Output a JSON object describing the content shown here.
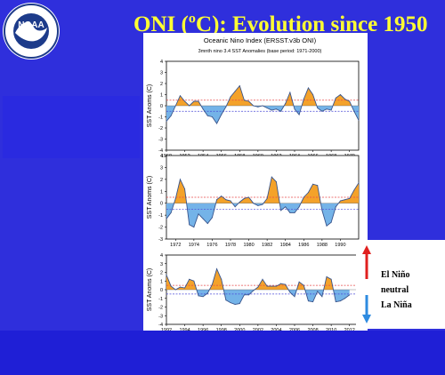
{
  "header": {
    "title": "ONI (ºC): Evolution since 1950"
  },
  "logo": {
    "text": "NOAA",
    "icon": "noaa-logo"
  },
  "chart": {
    "title": "Oceanic Nino Index (ERSST.v3b ONI)",
    "subtitle": "3mnth nino 3.4 SST Anomalies (base period: 1971-2000)"
  },
  "legend": {
    "el_nino": "El Niño",
    "neutral": "neutral",
    "la_nina": "La Niña",
    "up_arrow_icon": "arrow-up-icon",
    "down_arrow_icon": "arrow-down-icon"
  },
  "colors": {
    "background": "#2f2fdc",
    "title": "#ffff33",
    "warm_fill": "#f4a22a",
    "cold_fill": "#74b3e8",
    "line": "#38548c",
    "warm_threshold": "#e84a4a",
    "cold_threshold": "#4a4ad8"
  },
  "chart_data": [
    {
      "type": "area",
      "xlabel": "",
      "ylabel": "SST Anoms (C)",
      "xlim": [
        1950,
        1971
      ],
      "ylim": [
        -4,
        4
      ],
      "xticks": [
        "1950",
        "1952",
        "1954",
        "1956",
        "1958",
        "1960",
        "1962",
        "1964",
        "1966",
        "1968",
        "1970"
      ],
      "yticks": [
        "4",
        "3",
        "2",
        "1",
        "0",
        "-1",
        "-2",
        "-3",
        "-4"
      ],
      "thresholds": [
        0.5,
        -0.5
      ],
      "x": [
        1950,
        1950.5,
        1951,
        1951.5,
        1952,
        1952.5,
        1953,
        1953.5,
        1954,
        1954.5,
        1955,
        1955.5,
        1956,
        1956.5,
        1957,
        1957.5,
        1958,
        1958.5,
        1959,
        1959.5,
        1960,
        1960.5,
        1961,
        1961.5,
        1962,
        1962.5,
        1963,
        1963.5,
        1964,
        1964.5,
        1965,
        1965.5,
        1966,
        1966.5,
        1967,
        1967.5,
        1968,
        1968.5,
        1969,
        1969.5,
        1970,
        1970.5,
        1971
      ],
      "values": [
        -1.4,
        -0.9,
        0.0,
        0.9,
        0.4,
        0.0,
        0.4,
        0.4,
        -0.3,
        -0.9,
        -1.0,
        -1.6,
        -0.8,
        -0.1,
        0.8,
        1.3,
        1.8,
        0.5,
        0.4,
        0.0,
        -0.1,
        0.0,
        -0.2,
        -0.4,
        -0.3,
        -0.5,
        0.2,
        1.2,
        -0.3,
        -0.8,
        0.6,
        1.6,
        1.0,
        -0.2,
        -0.5,
        -0.3,
        -0.4,
        0.7,
        1.0,
        0.6,
        0.4,
        -0.5,
        -1.3
      ]
    },
    {
      "type": "area",
      "xlabel": "",
      "ylabel": "SST Anoms (C)",
      "xlim": [
        1971,
        1992
      ],
      "ylim": [
        -3,
        4
      ],
      "xticks": [
        "1972",
        "1974",
        "1976",
        "1978",
        "1980",
        "1982",
        "1984",
        "1986",
        "1988",
        "1990"
      ],
      "yticks": [
        "4",
        "3",
        "2",
        "1",
        "0",
        "-1",
        "-2",
        "-3"
      ],
      "thresholds": [
        0.5,
        -0.5
      ],
      "x": [
        1971,
        1971.5,
        1972,
        1972.5,
        1973,
        1973.5,
        1974,
        1974.5,
        1975,
        1975.5,
        1976,
        1976.5,
        1977,
        1977.5,
        1978,
        1978.5,
        1979,
        1979.5,
        1980,
        1980.5,
        1981,
        1981.5,
        1982,
        1982.5,
        1983,
        1983.5,
        1984,
        1984.5,
        1985,
        1985.5,
        1986,
        1986.5,
        1987,
        1987.5,
        1988,
        1988.5,
        1989,
        1989.5,
        1990,
        1990.5,
        1991,
        1991.5,
        1992
      ],
      "values": [
        -1.3,
        -0.8,
        0.4,
        2.0,
        1.2,
        -1.8,
        -2.0,
        -0.9,
        -1.3,
        -1.7,
        -1.2,
        0.3,
        0.6,
        0.3,
        0.2,
        -0.3,
        0.1,
        0.4,
        0.5,
        0.0,
        -0.2,
        -0.1,
        0.4,
        2.2,
        1.8,
        -0.6,
        -0.3,
        -0.8,
        -0.8,
        -0.3,
        0.5,
        0.9,
        1.6,
        1.5,
        -0.6,
        -1.9,
        -1.6,
        -0.3,
        0.2,
        0.3,
        0.4,
        1.1,
        1.7
      ]
    },
    {
      "type": "area",
      "xlabel": "",
      "ylabel": "SST Anoms (C)",
      "xlim": [
        1992,
        2013
      ],
      "ylim": [
        -4,
        4
      ],
      "xticks": [
        "1992",
        "1994",
        "1996",
        "1998",
        "2000",
        "2002",
        "2004",
        "2006",
        "2008",
        "2010",
        "2012"
      ],
      "yticks": [
        "4",
        "3",
        "2",
        "1",
        "0",
        "-1",
        "-2",
        "-3",
        "-4"
      ],
      "thresholds": [
        0.5,
        -0.5
      ],
      "x": [
        1992,
        1992.5,
        1993,
        1993.5,
        1994,
        1994.5,
        1995,
        1995.5,
        1996,
        1996.5,
        1997,
        1997.5,
        1998,
        1998.5,
        1999,
        1999.5,
        2000,
        2000.5,
        2001,
        2001.5,
        2002,
        2002.5,
        2003,
        2003.5,
        2004,
        2004.5,
        2005,
        2005.5,
        2006,
        2006.5,
        2007,
        2007.5,
        2008,
        2008.5,
        2009,
        2009.5,
        2010,
        2010.5,
        2011,
        2011.5,
        2012
      ],
      "values": [
        1.7,
        0.4,
        0.0,
        0.3,
        0.2,
        1.2,
        1.0,
        -0.7,
        -0.8,
        -0.4,
        0.6,
        2.4,
        1.2,
        -1.2,
        -1.5,
        -1.7,
        -1.6,
        -0.6,
        -0.6,
        -0.1,
        0.3,
        1.2,
        0.4,
        0.4,
        0.4,
        0.7,
        0.6,
        -0.3,
        -0.8,
        0.9,
        0.5,
        -1.3,
        -1.4,
        -0.2,
        -0.8,
        1.5,
        1.2,
        -1.4,
        -1.3,
        -1.0,
        -0.6
      ]
    }
  ]
}
